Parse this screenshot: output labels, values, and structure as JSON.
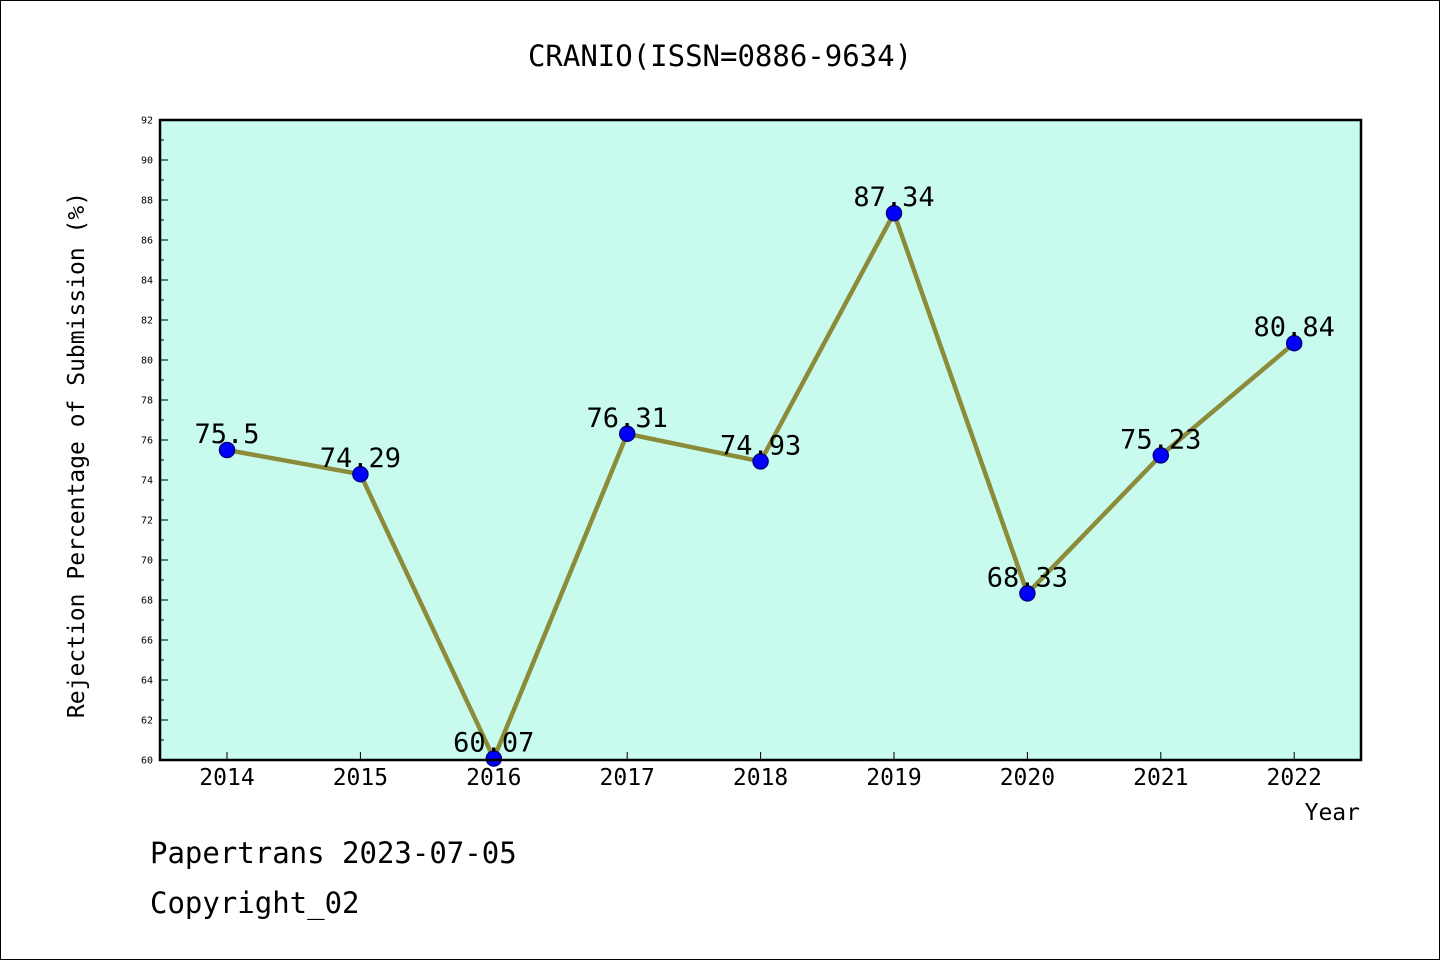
{
  "chart_data": {
    "type": "line",
    "title": "CRANIO(ISSN=0886-9634)",
    "xlabel": "Year",
    "ylabel": "Rejection Percentage of Submission (%)",
    "categories": [
      "2014",
      "2015",
      "2016",
      "2017",
      "2018",
      "2019",
      "2020",
      "2021",
      "2022"
    ],
    "values": [
      75.5,
      74.29,
      60.07,
      76.31,
      74.93,
      87.34,
      68.33,
      75.23,
      80.84
    ],
    "value_labels": [
      "75.5",
      "74.29",
      "60.07",
      "76.31",
      "74.93",
      "87.34",
      "68.33",
      "75.23",
      "80.84"
    ],
    "ylim": [
      60,
      92
    ],
    "yticks": [
      60,
      62,
      64,
      66,
      68,
      70,
      72,
      74,
      76,
      78,
      80,
      82,
      84,
      86,
      88,
      90,
      92
    ],
    "grid": false,
    "legend": "none",
    "colors": {
      "plot_background": "#c8fbee",
      "line": "#8b8b3a",
      "marker": "#0000ff",
      "marker_edge": "#00008b"
    }
  },
  "footer": {
    "line1": "Papertrans 2023-07-05",
    "line2": "Copyright_02"
  }
}
